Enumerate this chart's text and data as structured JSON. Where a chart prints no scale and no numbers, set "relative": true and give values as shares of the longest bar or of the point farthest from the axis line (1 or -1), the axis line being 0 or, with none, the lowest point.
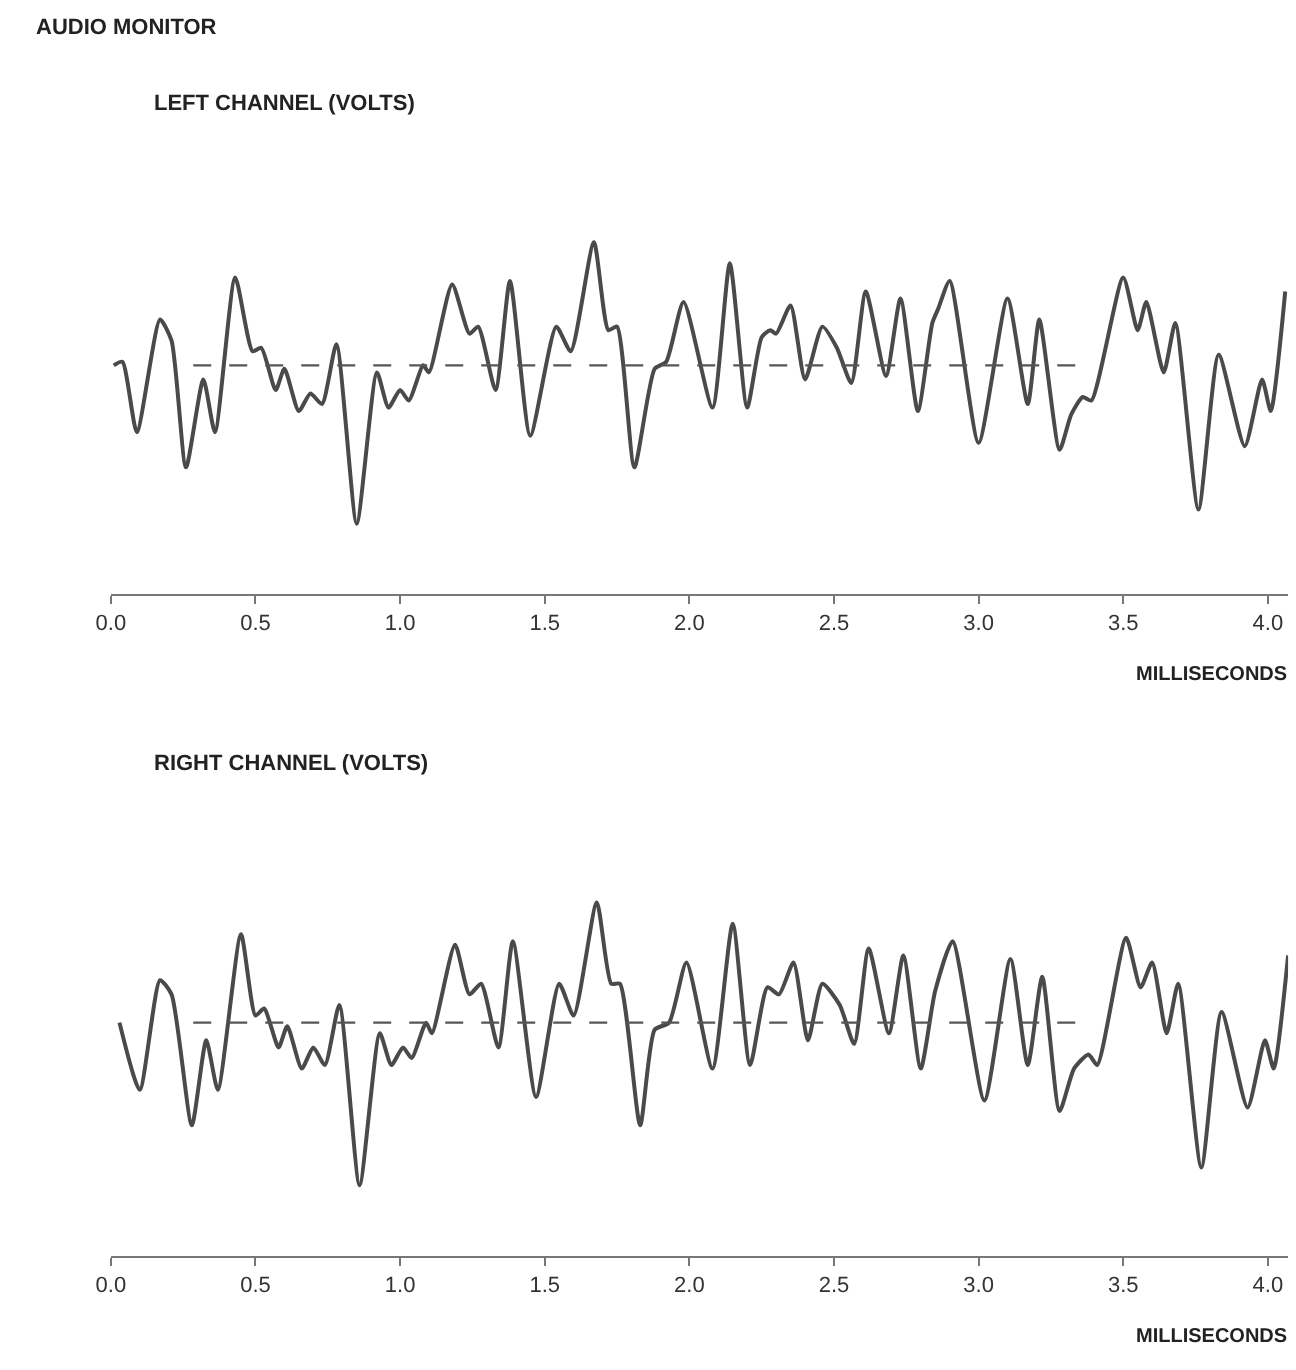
{
  "chart_data": [
    {
      "type": "line",
      "title": "AUDIO MONITOR",
      "subtitle": "LEFT CHANNEL (VOLTS)",
      "xlabel": "MILLISECONDS",
      "relative": true,
      "tick_labels": "x",
      "marker": "none",
      "line_style": "solid",
      "xlim": [
        0,
        4.07
      ],
      "xticks": [
        {
          "value": 0,
          "label": "0.0"
        },
        {
          "value": 0.5,
          "label": "0.5"
        },
        {
          "value": 1,
          "label": "1.0"
        },
        {
          "value": 1.5,
          "label": "1.5"
        },
        {
          "value": 2,
          "label": "2.0"
        },
        {
          "value": 2.5,
          "label": "2.5"
        },
        {
          "value": 3,
          "label": "3.0"
        },
        {
          "value": 3.5,
          "label": "3.5"
        },
        {
          "value": 4,
          "label": "4.0"
        }
      ],
      "ref_lines": [
        {
          "axis": "y",
          "value": 0.65,
          "label": null,
          "color": "#555555",
          "line_style": "dashed"
        }
      ],
      "series": [
        {
          "color": "#4a4a4a",
          "x": [
            0.01,
            0.04,
            0.09,
            0.17,
            0.21,
            0.26,
            0.32,
            0.36,
            0.43,
            0.49,
            0.52,
            0.57,
            0.6,
            0.65,
            0.69,
            0.73,
            0.78,
            0.85,
            0.92,
            0.96,
            1.0,
            1.03,
            1.08,
            1.1,
            1.18,
            1.24,
            1.27,
            1.33,
            1.38,
            1.45,
            1.54,
            1.59,
            1.67,
            1.72,
            1.75,
            1.81,
            1.88,
            1.92,
            1.98,
            2.08,
            2.14,
            2.2,
            2.25,
            2.28,
            2.3,
            2.35,
            2.4,
            2.46,
            2.51,
            2.56,
            2.61,
            2.68,
            2.73,
            2.79,
            2.84,
            2.86,
            2.9,
            3.0,
            3.1,
            3.17,
            3.21,
            3.28,
            3.32,
            3.36,
            3.39,
            3.5,
            3.55,
            3.58,
            3.64,
            3.68,
            3.76,
            3.83,
            3.92,
            3.98,
            4.01,
            4.06
          ],
          "values": [
            0.65,
            0.66,
            0.46,
            0.78,
            0.72,
            0.36,
            0.61,
            0.46,
            0.9,
            0.69,
            0.7,
            0.58,
            0.64,
            0.52,
            0.57,
            0.54,
            0.71,
            0.2,
            0.63,
            0.53,
            0.58,
            0.55,
            0.65,
            0.63,
            0.88,
            0.74,
            0.76,
            0.58,
            0.89,
            0.45,
            0.76,
            0.69,
            1.0,
            0.75,
            0.76,
            0.36,
            0.64,
            0.66,
            0.83,
            0.53,
            0.94,
            0.53,
            0.73,
            0.75,
            0.74,
            0.82,
            0.61,
            0.76,
            0.7,
            0.6,
            0.86,
            0.62,
            0.84,
            0.52,
            0.77,
            0.81,
            0.89,
            0.43,
            0.84,
            0.54,
            0.78,
            0.41,
            0.51,
            0.56,
            0.55,
            0.9,
            0.75,
            0.83,
            0.63,
            0.77,
            0.24,
            0.68,
            0.42,
            0.61,
            0.52,
            0.86
          ]
        }
      ]
    },
    {
      "type": "line",
      "title": "RIGHT CHANNEL (VOLTS)",
      "xlabel": "MILLISECONDS",
      "relative": true,
      "tick_labels": "x",
      "marker": "none",
      "line_style": "solid",
      "xlim": [
        0,
        4.07
      ],
      "xticks": [
        {
          "value": 0,
          "label": "0.0"
        },
        {
          "value": 0.5,
          "label": "0.5"
        },
        {
          "value": 1,
          "label": "1.0"
        },
        {
          "value": 1.5,
          "label": "1.5"
        },
        {
          "value": 2,
          "label": "2.0"
        },
        {
          "value": 2.5,
          "label": "2.5"
        },
        {
          "value": 3,
          "label": "3.0"
        },
        {
          "value": 3.5,
          "label": "3.5"
        },
        {
          "value": 4,
          "label": "4.0"
        }
      ],
      "ref_lines": [
        {
          "axis": "y",
          "value": 0.66,
          "label": null,
          "color": "#555555",
          "line_style": "dashed"
        }
      ],
      "series": [
        {
          "color": "#4a4a4a",
          "x": [
            0.03,
            0.1,
            0.17,
            0.21,
            0.28,
            0.33,
            0.37,
            0.45,
            0.5,
            0.53,
            0.58,
            0.61,
            0.66,
            0.7,
            0.74,
            0.79,
            0.86,
            0.93,
            0.97,
            1.01,
            1.04,
            1.09,
            1.11,
            1.19,
            1.24,
            1.28,
            1.34,
            1.39,
            1.47,
            1.55,
            1.6,
            1.68,
            1.73,
            1.76,
            1.83,
            1.88,
            1.93,
            1.99,
            2.08,
            2.15,
            2.21,
            2.27,
            2.31,
            2.36,
            2.41,
            2.46,
            2.52,
            2.57,
            2.62,
            2.69,
            2.74,
            2.8,
            2.85,
            2.91,
            3.02,
            3.11,
            3.17,
            3.22,
            3.28,
            3.33,
            3.38,
            3.41,
            3.51,
            3.56,
            3.6,
            3.65,
            3.69,
            3.77,
            3.84,
            3.93,
            3.99,
            4.02,
            4.07
          ],
          "values": [
            0.66,
            0.47,
            0.78,
            0.74,
            0.37,
            0.61,
            0.47,
            0.91,
            0.68,
            0.7,
            0.59,
            0.65,
            0.53,
            0.59,
            0.54,
            0.71,
            0.2,
            0.63,
            0.54,
            0.59,
            0.56,
            0.66,
            0.63,
            0.88,
            0.74,
            0.77,
            0.59,
            0.89,
            0.45,
            0.77,
            0.68,
            1.0,
            0.77,
            0.77,
            0.37,
            0.64,
            0.66,
            0.83,
            0.53,
            0.94,
            0.54,
            0.76,
            0.74,
            0.83,
            0.61,
            0.77,
            0.71,
            0.6,
            0.87,
            0.63,
            0.85,
            0.53,
            0.75,
            0.89,
            0.44,
            0.84,
            0.54,
            0.79,
            0.41,
            0.53,
            0.57,
            0.54,
            0.9,
            0.76,
            0.83,
            0.63,
            0.77,
            0.25,
            0.69,
            0.42,
            0.61,
            0.53,
            0.85
          ]
        }
      ]
    }
  ]
}
